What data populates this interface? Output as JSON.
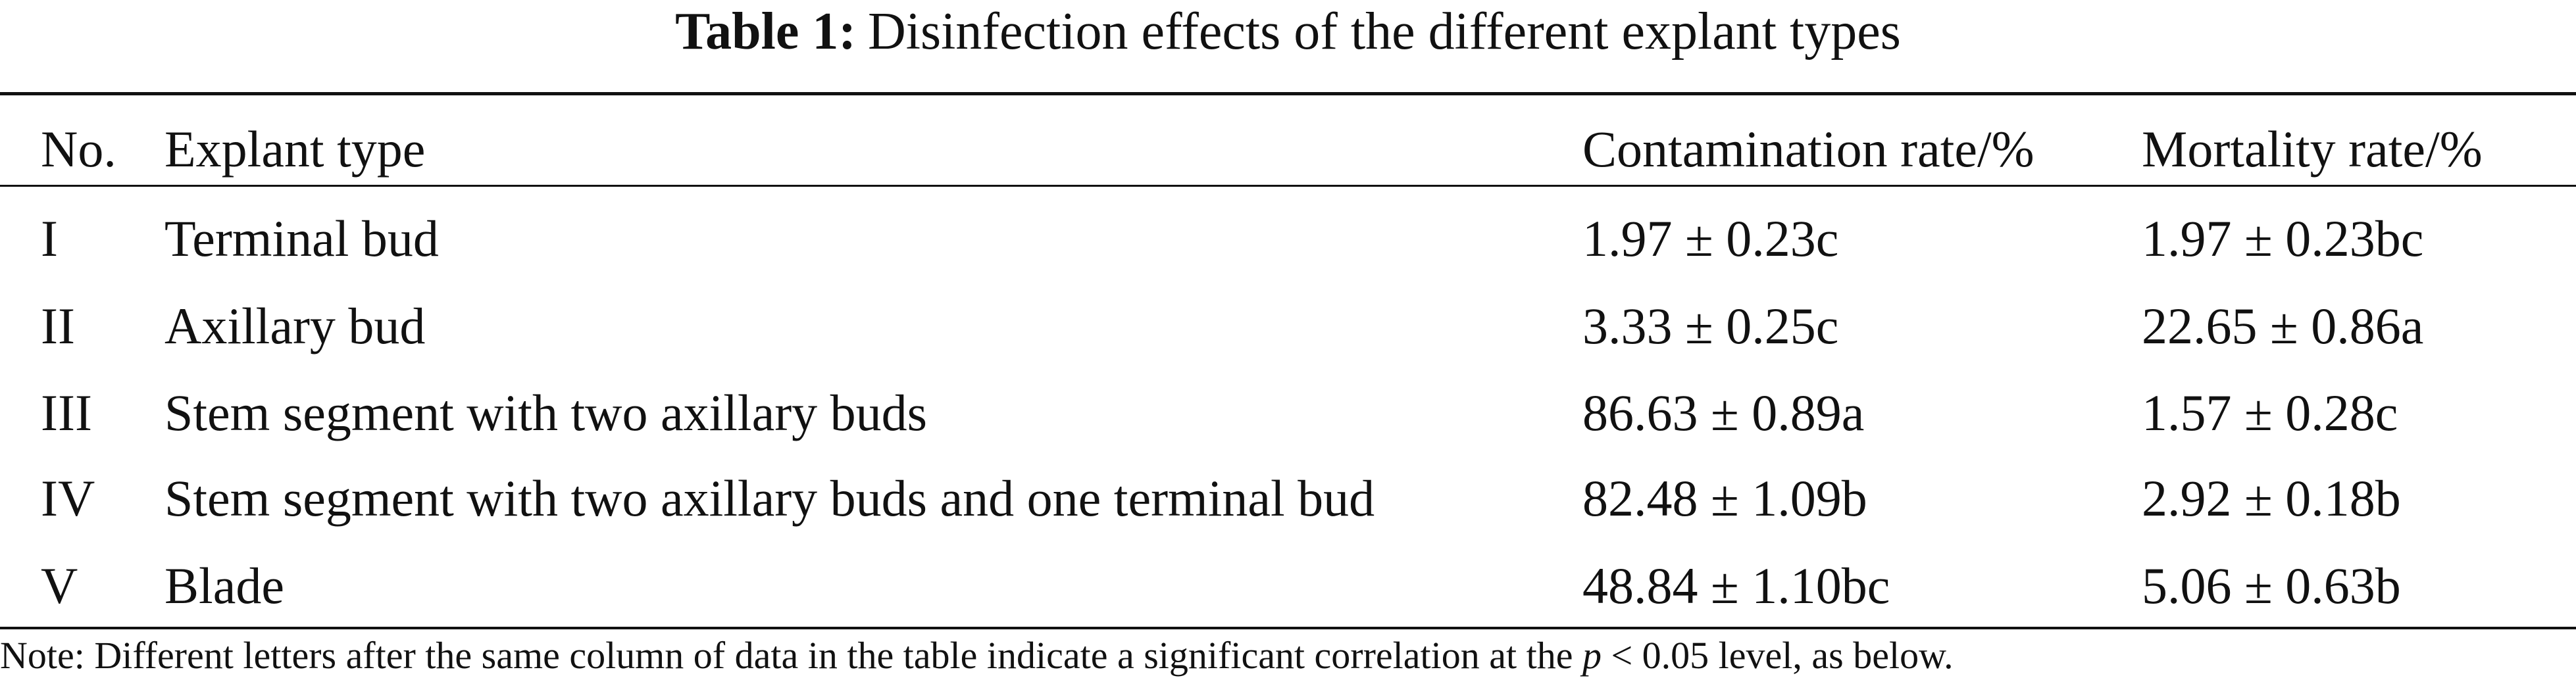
{
  "title": {
    "label": "Table 1:",
    "text": "Disinfection effects of the different explant types"
  },
  "table": {
    "header": [
      "No.",
      "Explant type",
      "Contamination rate/%",
      "Mortality rate/%"
    ],
    "rows": [
      [
        "I",
        "Terminal bud",
        "1.97 ± 0.23c",
        "1.97 ± 0.23bc"
      ],
      [
        "II",
        "Axillary bud",
        "3.33 ± 0.25c",
        "22.65 ± 0.86a"
      ],
      [
        "III",
        "Stem segment with two axillary buds",
        "86.63 ± 0.89a",
        "1.57 ± 0.28c"
      ],
      [
        "IV",
        "Stem segment with two axillary buds and one terminal bud",
        "82.48 ± 1.09b",
        "2.92 ± 0.18b"
      ],
      [
        "V",
        "Blade",
        "48.84 ± 1.10bc",
        "5.06 ± 0.63b"
      ]
    ]
  },
  "note": {
    "before": "Note: Different letters after the same column of data in the table indicate a significant correlation at the ",
    "italic": "p",
    "after": " < 0.05 level, as below."
  }
}
